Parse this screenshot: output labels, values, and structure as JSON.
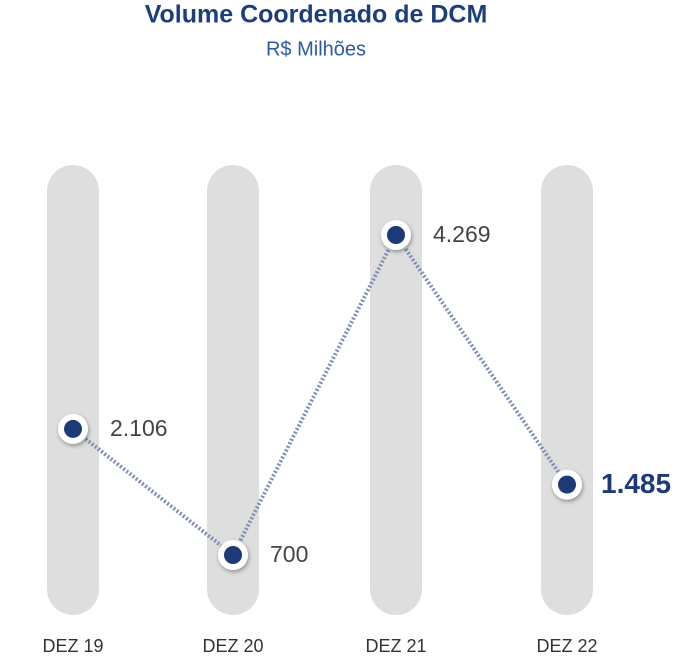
{
  "chart_data": {
    "type": "line",
    "title": "Volume Coordenado de DCM",
    "subtitle": "R$ Milhões",
    "categories": [
      "DEZ 19",
      "DEZ 20",
      "DEZ 21",
      "DEZ 22"
    ],
    "values": [
      2106,
      700,
      4269,
      1485
    ],
    "value_labels": [
      "2.106",
      "700",
      "4.269",
      "1.485"
    ],
    "color": "#1c3a78",
    "grid": false
  }
}
